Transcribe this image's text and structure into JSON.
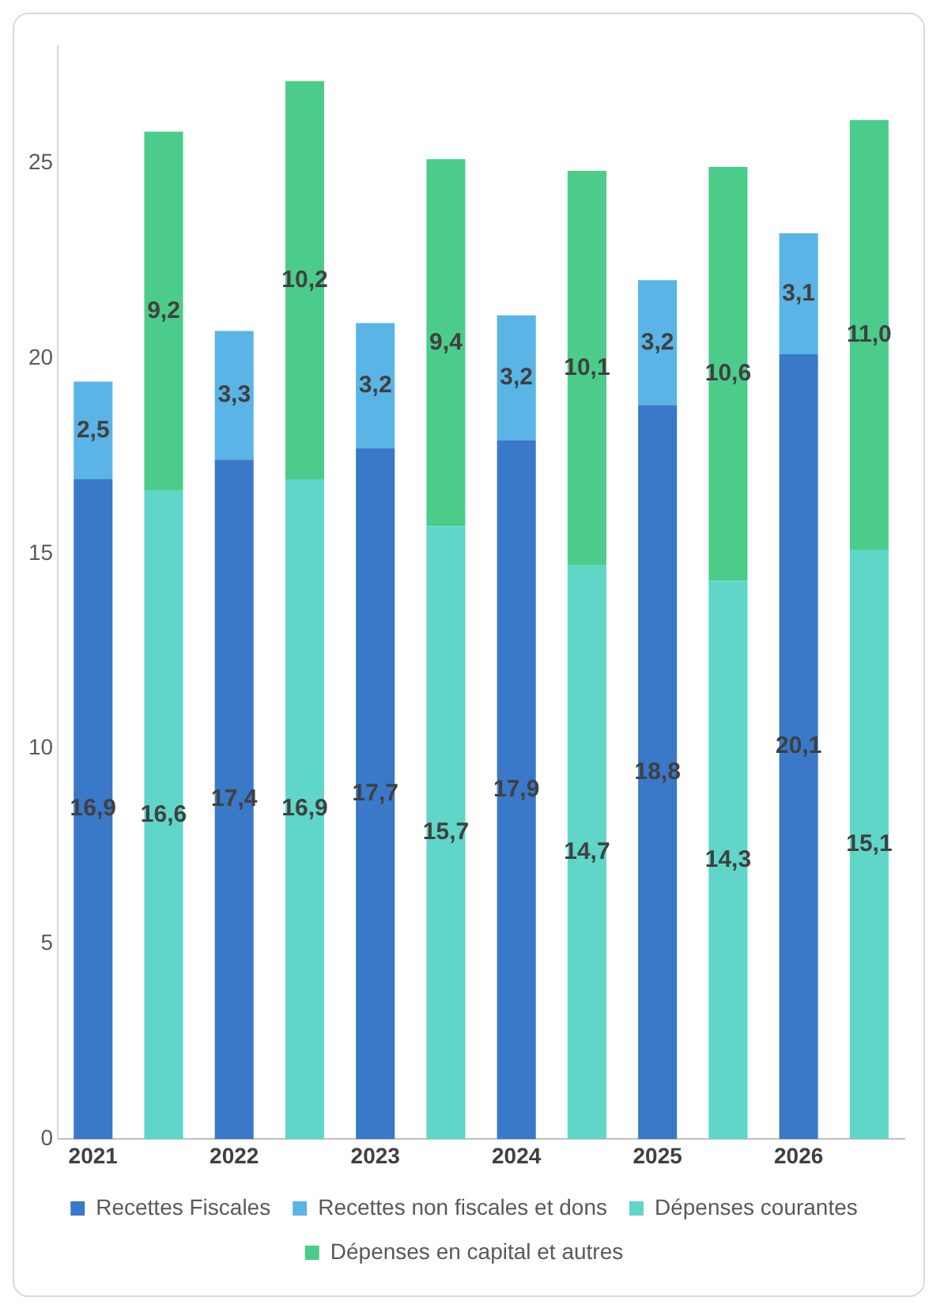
{
  "chart_data": {
    "type": "bar",
    "stacked": true,
    "categories": [
      "2021",
      null,
      "2022",
      null,
      "2023",
      null,
      "2024",
      null,
      "2025",
      null,
      "2026",
      null
    ],
    "ylim": [
      0,
      28
    ],
    "yticks": [
      0,
      5,
      10,
      15,
      20,
      25
    ],
    "grid": false,
    "legend": "bottom",
    "series": [
      {
        "name": "Recettes Fiscales",
        "color": "#3a78c8",
        "values": [
          16.9,
          null,
          17.4,
          null,
          17.7,
          null,
          17.9,
          null,
          18.8,
          null,
          20.1,
          null
        ],
        "value_labels": [
          "16,9",
          null,
          "17,4",
          null,
          "17,7",
          null,
          "17,9",
          null,
          "18,8",
          null,
          "20,1",
          null
        ]
      },
      {
        "name": "Recettes non fiscales et dons",
        "color": "#5ab4e6",
        "values": [
          2.5,
          null,
          3.3,
          null,
          3.2,
          null,
          3.2,
          null,
          3.2,
          null,
          3.1,
          null
        ],
        "value_labels": [
          "2,5",
          null,
          "3,3",
          null,
          "3,2",
          null,
          "3,2",
          null,
          "3,2",
          null,
          "3,1",
          null
        ]
      },
      {
        "name": "Dépenses courantes",
        "color": "#5fd6c8",
        "values": [
          null,
          16.6,
          null,
          16.9,
          null,
          15.7,
          null,
          14.7,
          null,
          14.3,
          null,
          15.1
        ],
        "value_labels": [
          null,
          "16,6",
          null,
          "16,9",
          null,
          "15,7",
          null,
          "14,7",
          null,
          "14,3",
          null,
          "15,1"
        ]
      },
      {
        "name": "Dépenses en capital et autres",
        "color": "#4ccc8a",
        "values": [
          null,
          9.2,
          null,
          10.2,
          null,
          9.4,
          null,
          10.1,
          null,
          10.6,
          null,
          11.0
        ],
        "value_labels": [
          null,
          "9,2",
          null,
          "10,2",
          null,
          "9,4",
          null,
          "10,1",
          null,
          "10,6",
          null,
          "11,0"
        ]
      }
    ]
  }
}
